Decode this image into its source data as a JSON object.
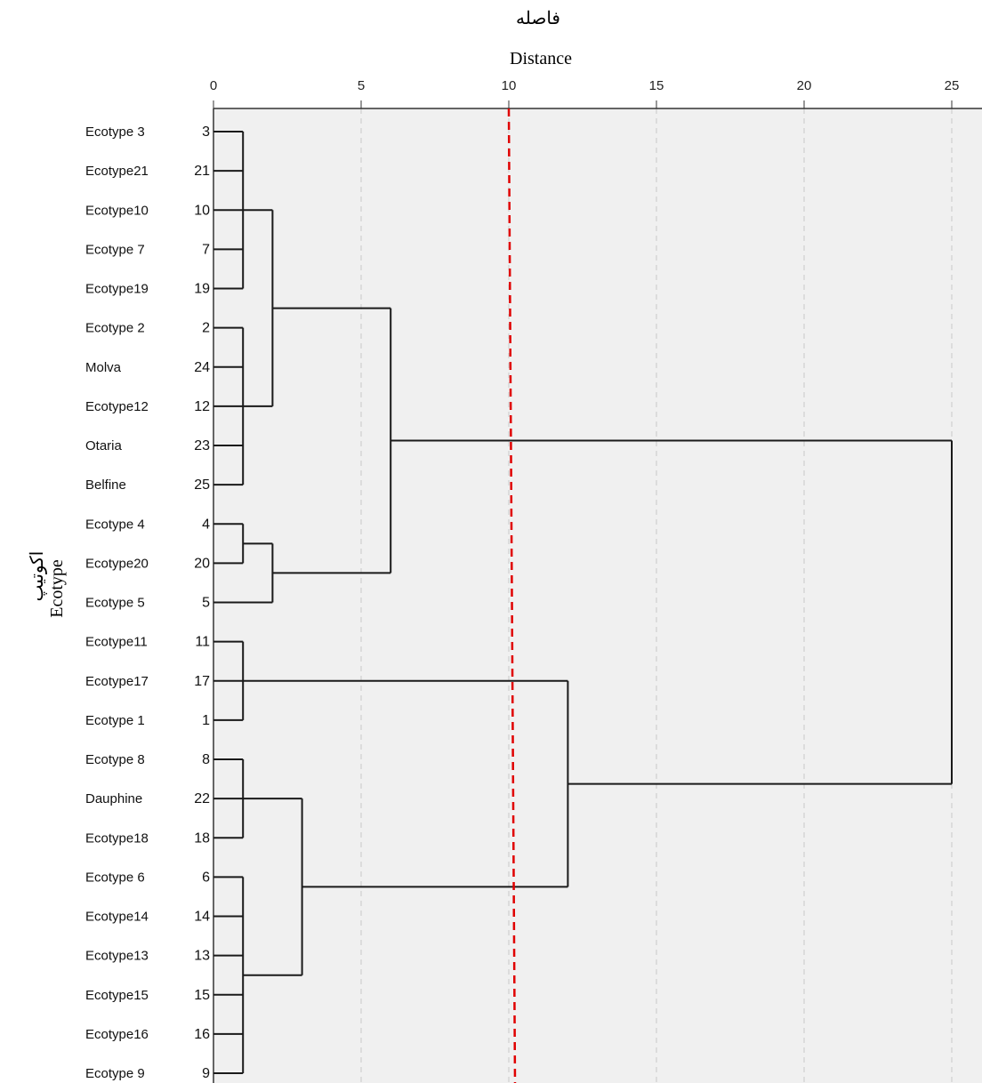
{
  "chart_data": {
    "type": "dendrogram",
    "title_fa": "فاصله",
    "title_en": "Distance",
    "ylabel_fa": "اکوتیپ",
    "ylabel_en": "Ecotype",
    "xlim": [
      0,
      25
    ],
    "xticks": [
      "0",
      "5",
      "10",
      "15",
      "20",
      "25"
    ],
    "grid": true,
    "cut_line": {
      "value": 10,
      "color": "#e00000"
    },
    "leaves": [
      {
        "name": "Ecotype 3",
        "id": "3"
      },
      {
        "name": "Ecotype21",
        "id": "21"
      },
      {
        "name": "Ecotype10",
        "id": "10"
      },
      {
        "name": "Ecotype 7",
        "id": "7"
      },
      {
        "name": "Ecotype19",
        "id": "19"
      },
      {
        "name": "Ecotype 2",
        "id": "2"
      },
      {
        "name": "Molva",
        "id": "24"
      },
      {
        "name": "Ecotype12",
        "id": "12"
      },
      {
        "name": "Otaria",
        "id": "23"
      },
      {
        "name": "Belfine",
        "id": "25"
      },
      {
        "name": "Ecotype 4",
        "id": "4"
      },
      {
        "name": "Ecotype20",
        "id": "20"
      },
      {
        "name": "Ecotype 5",
        "id": "5"
      },
      {
        "name": "Ecotype11",
        "id": "11"
      },
      {
        "name": "Ecotype17",
        "id": "17"
      },
      {
        "name": "Ecotype 1",
        "id": "1"
      },
      {
        "name": "Ecotype 8",
        "id": "8"
      },
      {
        "name": "Dauphine",
        "id": "22"
      },
      {
        "name": "Ecotype18",
        "id": "18"
      },
      {
        "name": "Ecotype 6",
        "id": "6"
      },
      {
        "name": "Ecotype14",
        "id": "14"
      },
      {
        "name": "Ecotype13",
        "id": "13"
      },
      {
        "name": "Ecotype15",
        "id": "15"
      },
      {
        "name": "Ecotype16",
        "id": "16"
      },
      {
        "name": "Ecotype 9",
        "id": "9"
      }
    ],
    "merges": [
      {
        "name": "c1",
        "height": 1,
        "children": [
          "3",
          "21",
          "10",
          "7",
          "19"
        ]
      },
      {
        "name": "c2",
        "height": 1,
        "children": [
          "2",
          "24",
          "12",
          "23",
          "25"
        ]
      },
      {
        "name": "c3",
        "height": 2,
        "children": [
          "c1",
          "c2"
        ]
      },
      {
        "name": "c4",
        "height": 1,
        "children": [
          "4",
          "20"
        ]
      },
      {
        "name": "c5",
        "height": 2,
        "children": [
          "c4",
          "5"
        ]
      },
      {
        "name": "c6",
        "height": 6,
        "children": [
          "c3",
          "c5"
        ]
      },
      {
        "name": "c7",
        "height": 1,
        "children": [
          "11",
          "17",
          "1"
        ]
      },
      {
        "name": "c8",
        "height": 1,
        "children": [
          "8",
          "22",
          "18"
        ]
      },
      {
        "name": "c9",
        "height": 1,
        "children": [
          "6",
          "14",
          "13",
          "15",
          "16",
          "9"
        ]
      },
      {
        "name": "c10",
        "height": 3,
        "children": [
          "c8",
          "c9"
        ]
      },
      {
        "name": "c11",
        "height": 12,
        "children": [
          "c7",
          "c10"
        ]
      },
      {
        "name": "c12",
        "height": 25,
        "children": [
          "c6",
          "c11"
        ]
      }
    ]
  }
}
